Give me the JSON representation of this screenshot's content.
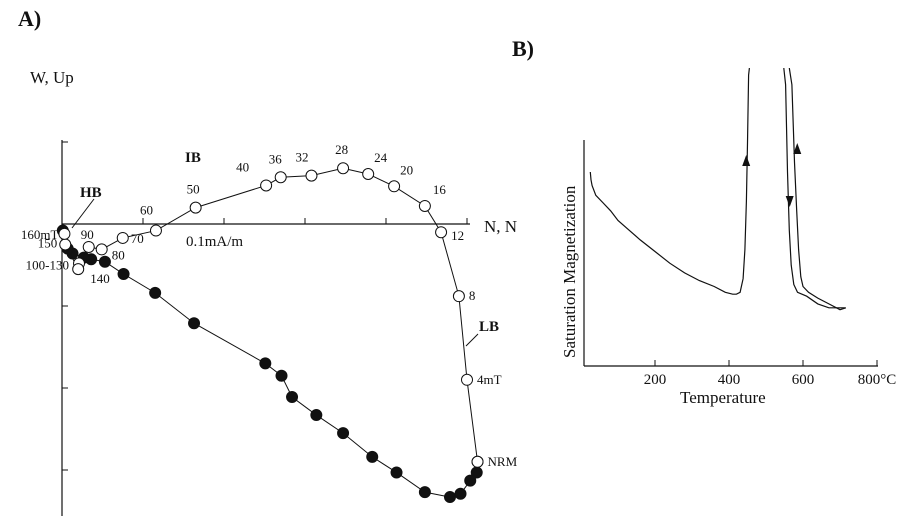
{
  "panels": {
    "a_label": "A)",
    "b_label": "B)"
  },
  "chart_data": [
    {
      "type": "line",
      "panel": "A",
      "ylabel": "W, Up",
      "xlabel": "N, N",
      "scale_label": "0.1mA/m",
      "series": [
        {
          "name": "",
          "marker": "open",
          "points": [
            {
              "step": "NRM",
              "N": 5.13,
              "Up": -2.9
            },
            {
              "step": "4mT",
              "N": 5.0,
              "Up": -1.9
            },
            {
              "step": "8",
              "N": 4.9,
              "Up": -0.88
            },
            {
              "step": "12",
              "N": 4.68,
              "Up": -0.1
            },
            {
              "step": "16",
              "N": 4.48,
              "Up": 0.22
            },
            {
              "step": "20",
              "N": 4.1,
              "Up": 0.46
            },
            {
              "step": "24",
              "N": 3.78,
              "Up": 0.61
            },
            {
              "step": "28",
              "N": 3.47,
              "Up": 0.68
            },
            {
              "step": "32",
              "N": 3.08,
              "Up": 0.59
            },
            {
              "step": "36",
              "N": 2.7,
              "Up": 0.57
            },
            {
              "step": "40",
              "N": 2.52,
              "Up": 0.47
            },
            {
              "step": "50",
              "N": 1.65,
              "Up": 0.2
            },
            {
              "step": "60",
              "N": 1.16,
              "Up": -0.08
            },
            {
              "step": "70",
              "N": 0.75,
              "Up": -0.17
            },
            {
              "step": "80",
              "N": 0.49,
              "Up": -0.31
            },
            {
              "step": "90",
              "N": 0.33,
              "Up": -0.28
            },
            {
              "step": "100-130",
              "N": 0.21,
              "Up": -0.48
            },
            {
              "step": "140",
              "N": 0.2,
              "Up": -0.55
            },
            {
              "step": "150",
              "N": 0.04,
              "Up": -0.25
            },
            {
              "step": "160mT",
              "N": 0.03,
              "Up": -0.12
            }
          ],
          "step_labels": [
            "NRM",
            "4mT",
            "8",
            "12",
            "16",
            "20",
            "24",
            "28",
            "32",
            "36",
            "40",
            "50",
            "60",
            "70",
            "80",
            "90",
            "100-130",
            "140",
            "150",
            "160mT"
          ],
          "vertical_projection": [
            {
              "W": 5.13,
              "N": -2.9
            },
            {
              "W": 5.0,
              "N": -1.9
            },
            {
              "W": 4.9,
              "N": -0.88
            },
            {
              "W": 4.68,
              "N": -0.1
            }
          ]
        },
        {
          "name": "",
          "marker": "filled",
          "points": [
            {
              "N": 5.13,
              "Up": -2.9
            },
            {
              "N": 5.12,
              "Up": -3.03
            },
            {
              "N": 5.04,
              "Up": -3.13
            },
            {
              "N": 4.92,
              "Up": -3.29
            },
            {
              "N": 4.79,
              "Up": -3.33
            },
            {
              "N": 4.48,
              "Up": -3.27
            },
            {
              "N": 4.13,
              "Up": -3.03
            },
            {
              "N": 3.83,
              "Up": -2.84
            },
            {
              "N": 3.47,
              "Up": -2.55
            },
            {
              "N": 3.14,
              "Up": -2.33
            },
            {
              "N": 2.84,
              "Up": -2.11
            },
            {
              "N": 2.71,
              "Up": -1.85
            },
            {
              "N": 2.51,
              "Up": -1.7
            },
            {
              "N": 1.63,
              "Up": -1.21
            },
            {
              "N": 1.15,
              "Up": -0.84
            },
            {
              "N": 0.76,
              "Up": -0.61
            },
            {
              "N": 0.53,
              "Up": -0.46
            },
            {
              "N": 0.36,
              "Up": -0.43
            },
            {
              "N": 0.27,
              "Up": -0.41
            },
            {
              "N": 0.13,
              "Up": -0.36
            },
            {
              "N": 0.07,
              "Up": -0.3
            },
            {
              "N": 0.01,
              "Up": -0.08
            }
          ]
        }
      ],
      "annotations": [
        {
          "text": "IB"
        },
        {
          "text": "HB"
        },
        {
          "text": "LB"
        }
      ],
      "axes": {
        "x_tick_step": 1,
        "y_tick_step": 1,
        "ylim": [
          -3.6,
          1.0
        ],
        "xlim": [
          0,
          5.2
        ]
      }
    },
    {
      "type": "line",
      "panel": "B",
      "title": "",
      "xlabel": "Temperature",
      "ylabel": "Saturation Magnetization",
      "x_ticks": [
        "200",
        "400",
        "600",
        "800°C"
      ],
      "xlim": [
        20,
        820
      ],
      "series": [
        {
          "name": "",
          "points": [
            [
              25,
              1.0
            ],
            [
              27,
              0.96
            ],
            [
              30,
              0.93
            ],
            [
              40,
              0.88
            ],
            [
              60,
              0.84
            ],
            [
              80,
              0.8
            ],
            [
              100,
              0.75
            ],
            [
              130,
              0.7
            ],
            [
              160,
              0.65
            ],
            [
              200,
              0.59
            ],
            [
              240,
              0.53
            ],
            [
              280,
              0.48
            ],
            [
              320,
              0.44
            ],
            [
              360,
              0.41
            ],
            [
              390,
              0.38
            ],
            [
              410,
              0.37
            ],
            [
              420,
              0.37
            ],
            [
              430,
              0.38
            ],
            [
              438,
              0.45
            ],
            [
              443,
              0.6
            ],
            [
              447,
              0.85
            ],
            [
              450,
              1.15
            ],
            [
              453,
              1.5
            ],
            [
              455,
              1.8
            ]
          ]
        },
        {
          "name": "",
          "points": [
            [
              548,
              1.8
            ],
            [
              553,
              1.45
            ],
            [
              558,
              1.0
            ],
            [
              563,
              0.7
            ],
            [
              568,
              0.52
            ],
            [
              575,
              0.42
            ],
            [
              585,
              0.38
            ],
            [
              610,
              0.36
            ],
            [
              640,
              0.32
            ],
            [
              670,
              0.3
            ],
            [
              700,
              0.3
            ],
            [
              715,
              0.3
            ]
          ]
        },
        {
          "name": "",
          "points": [
            [
              563,
              1.8
            ],
            [
              570,
              1.45
            ],
            [
              577,
              1.05
            ],
            [
              583,
              0.8
            ],
            [
              588,
              0.6
            ],
            [
              594,
              0.46
            ],
            [
              600,
              0.41
            ],
            [
              615,
              0.38
            ],
            [
              640,
              0.35
            ],
            [
              670,
              0.32
            ],
            [
              700,
              0.29
            ],
            [
              716,
              0.3
            ]
          ]
        }
      ],
      "arrows": [
        "up",
        "up",
        "down"
      ]
    }
  ]
}
